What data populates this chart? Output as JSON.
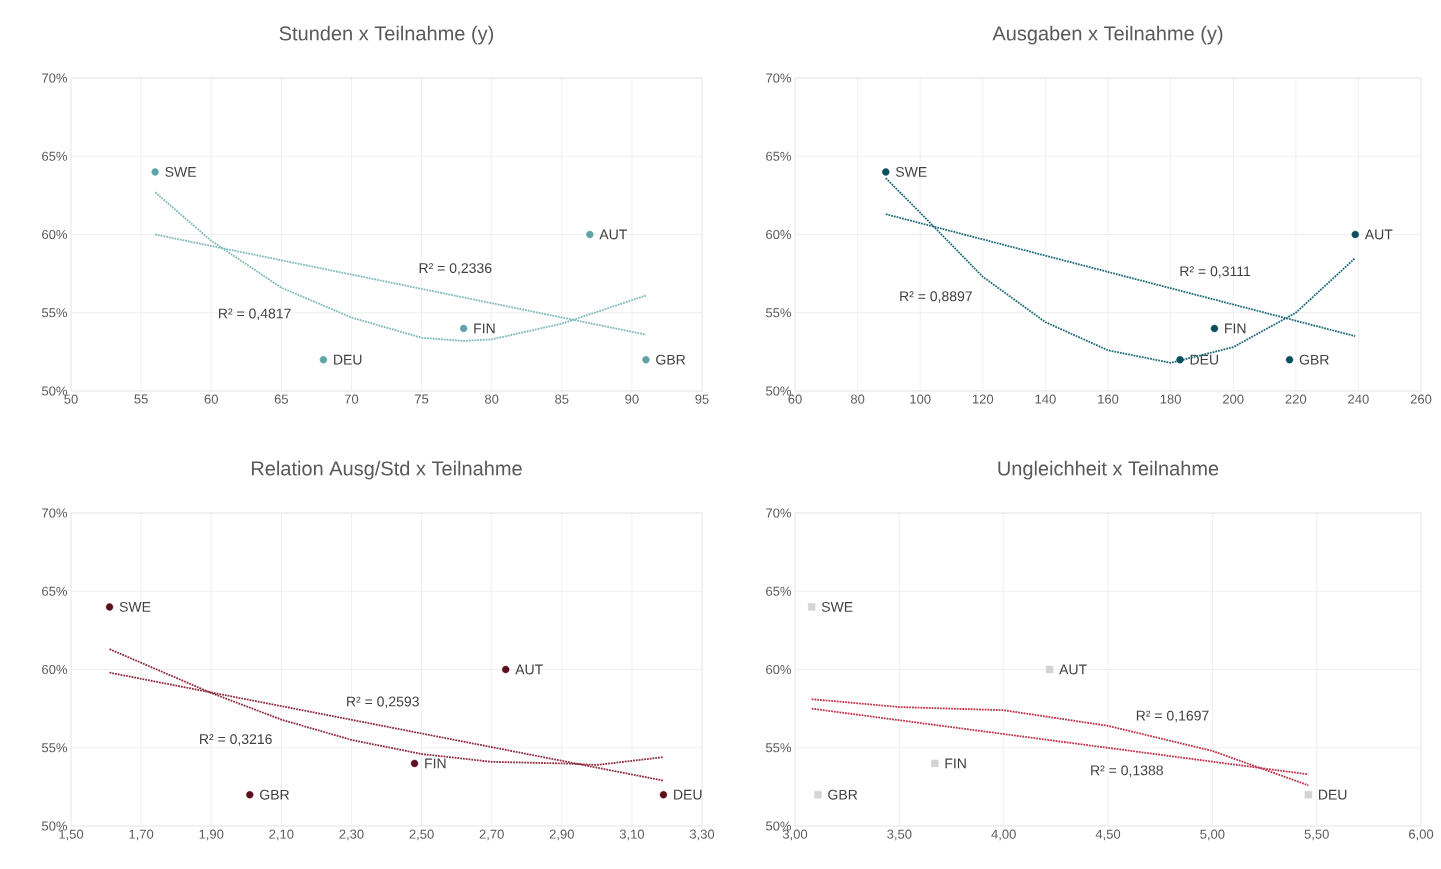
{
  "chart_data": [
    {
      "type": "scatter",
      "title": "Stunden x Teilnahme (y)",
      "xlim": [
        50,
        95
      ],
      "xticks": [
        50,
        55,
        60,
        65,
        70,
        75,
        80,
        85,
        90,
        95
      ],
      "ylim": [
        50,
        70
      ],
      "yticks": [
        {
          "value": 50,
          "label": "50%"
        },
        {
          "value": 55,
          "label": "55%"
        },
        {
          "value": 60,
          "label": "60%"
        },
        {
          "value": 65,
          "label": "65%"
        },
        {
          "value": 70,
          "label": "70%"
        }
      ],
      "grid": true,
      "series": [
        {
          "color": "#5fa3a6",
          "marker": "circle",
          "x": [
            56,
            87,
            78,
            68,
            91
          ],
          "values": [
            64,
            60,
            54,
            52,
            52
          ],
          "value_labels": [
            "SWE",
            "AUT",
            "FIN",
            "DEU",
            "GBR"
          ]
        },
        {
          "type": "line",
          "color": "#7fb8ba",
          "line_style": "dotted",
          "x": [
            56,
            91
          ],
          "values": [
            60.0,
            53.6
          ]
        },
        {
          "type": "line",
          "color": "#7fb8ba",
          "line_style": "dotted",
          "x": [
            56,
            60,
            65,
            70,
            75,
            78,
            80,
            85,
            91
          ],
          "values": [
            62.7,
            59.6,
            56.6,
            54.7,
            53.4,
            53.2,
            53.3,
            54.3,
            56.1
          ]
        }
      ],
      "annotations": [
        "R² = 0,2336",
        "R² = 0,4817"
      ]
    },
    {
      "type": "scatter",
      "title": "Ausgaben x Teilnahme (y)",
      "xlim": [
        60,
        260
      ],
      "xticks": [
        60,
        80,
        100,
        120,
        140,
        160,
        180,
        200,
        220,
        240,
        260
      ],
      "ylim": [
        50,
        70
      ],
      "yticks": [
        {
          "value": 50,
          "label": "50%"
        },
        {
          "value": 55,
          "label": "55%"
        },
        {
          "value": 60,
          "label": "60%"
        },
        {
          "value": 65,
          "label": "65%"
        },
        {
          "value": 70,
          "label": "70%"
        }
      ],
      "grid": true,
      "series": [
        {
          "color": "#0b4f5c",
          "marker": "circle",
          "x": [
            89,
            239,
            194,
            183,
            218
          ],
          "values": [
            64,
            60,
            54,
            52,
            52
          ],
          "value_labels": [
            "SWE",
            "AUT",
            "FIN",
            "DEU",
            "GBR"
          ]
        },
        {
          "type": "line",
          "color": "#1f6b78",
          "line_style": "dotted",
          "x": [
            89,
            239
          ],
          "values": [
            61.3,
            53.5
          ]
        },
        {
          "type": "line",
          "color": "#1f6b78",
          "line_style": "dotted",
          "x": [
            89,
            100,
            120,
            140,
            160,
            180,
            200,
            220,
            239
          ],
          "values": [
            63.6,
            61.4,
            57.3,
            54.4,
            52.6,
            51.8,
            52.8,
            55.0,
            58.5
          ]
        }
      ],
      "annotations": [
        "R² = 0,3111",
        "R² = 0,8897"
      ]
    },
    {
      "type": "scatter",
      "title": "Relation Ausg/Std x Teilnahme",
      "xlim": [
        1.5,
        3.3
      ],
      "xticks": [
        {
          "value": 1.5,
          "label": "1,50"
        },
        {
          "value": 1.7,
          "label": "1,70"
        },
        {
          "value": 1.9,
          "label": "1,90"
        },
        {
          "value": 2.1,
          "label": "2,10"
        },
        {
          "value": 2.3,
          "label": "2,30"
        },
        {
          "value": 2.5,
          "label": "2,50"
        },
        {
          "value": 2.7,
          "label": "2,70"
        },
        {
          "value": 2.9,
          "label": "2,90"
        },
        {
          "value": 3.1,
          "label": "3,10"
        },
        {
          "value": 3.3,
          "label": "3,30"
        }
      ],
      "ylim": [
        50,
        70
      ],
      "yticks": [
        {
          "value": 50,
          "label": "50%"
        },
        {
          "value": 55,
          "label": "55%"
        },
        {
          "value": 60,
          "label": "60%"
        },
        {
          "value": 65,
          "label": "65%"
        },
        {
          "value": 70,
          "label": "70%"
        }
      ],
      "grid": true,
      "series": [
        {
          "color": "#5c0f1e",
          "marker": "circle",
          "x": [
            1.61,
            2.74,
            2.48,
            2.01,
            3.19
          ],
          "values": [
            64,
            60,
            54,
            52,
            52
          ],
          "value_labels": [
            "SWE",
            "AUT",
            "FIN",
            "GBR",
            "DEU"
          ]
        },
        {
          "type": "line",
          "color": "#8e2a3c",
          "line_style": "dotted",
          "x": [
            1.61,
            3.19
          ],
          "values": [
            59.8,
            52.9
          ]
        },
        {
          "type": "line",
          "color": "#8e2a3c",
          "line_style": "dotted",
          "x": [
            1.61,
            1.9,
            2.1,
            2.3,
            2.5,
            2.7,
            2.9,
            3.0,
            3.19
          ],
          "values": [
            61.3,
            58.5,
            56.8,
            55.5,
            54.6,
            54.1,
            54.0,
            53.9,
            54.4
          ]
        }
      ],
      "annotations": [
        "R² = 0,2593",
        "R² = 0,3216"
      ]
    },
    {
      "type": "scatter",
      "title": "Ungleichheit x Teilnahme",
      "xlim": [
        3,
        6
      ],
      "xticks": [
        {
          "value": 3,
          "label": "3,00"
        },
        {
          "value": 3.5,
          "label": "3,50"
        },
        {
          "value": 4,
          "label": "4,00"
        },
        {
          "value": 4.5,
          "label": "4,50"
        },
        {
          "value": 5,
          "label": "5,00"
        },
        {
          "value": 5.5,
          "label": "5,50"
        },
        {
          "value": 6,
          "label": "6,00"
        }
      ],
      "ylim": [
        50,
        70
      ],
      "yticks": [
        {
          "value": 50,
          "label": "50%"
        },
        {
          "value": 55,
          "label": "55%"
        },
        {
          "value": 60,
          "label": "60%"
        },
        {
          "value": 65,
          "label": "65%"
        },
        {
          "value": 70,
          "label": "70%"
        }
      ],
      "grid": true,
      "series": [
        {
          "color": "#d4d4d4",
          "marker": "square",
          "x": [
            3.08,
            4.22,
            3.67,
            3.11,
            5.46
          ],
          "values": [
            64,
            60,
            54,
            52,
            52
          ],
          "value_labels": [
            "SWE",
            "AUT",
            "FIN",
            "GBR",
            "DEU"
          ]
        },
        {
          "type": "line",
          "color": "#c0304a",
          "line_style": "dotted",
          "x": [
            3.08,
            5.46
          ],
          "values": [
            57.5,
            53.3
          ]
        },
        {
          "type": "line",
          "color": "#c0304a",
          "line_style": "dotted",
          "x": [
            3.08,
            3.5,
            4.0,
            4.5,
            5.0,
            5.46
          ],
          "values": [
            58.1,
            57.6,
            57.4,
            56.4,
            54.8,
            52.6
          ]
        }
      ],
      "annotations": [
        "R² = 0,1697",
        "R² = 0,1388"
      ]
    }
  ]
}
